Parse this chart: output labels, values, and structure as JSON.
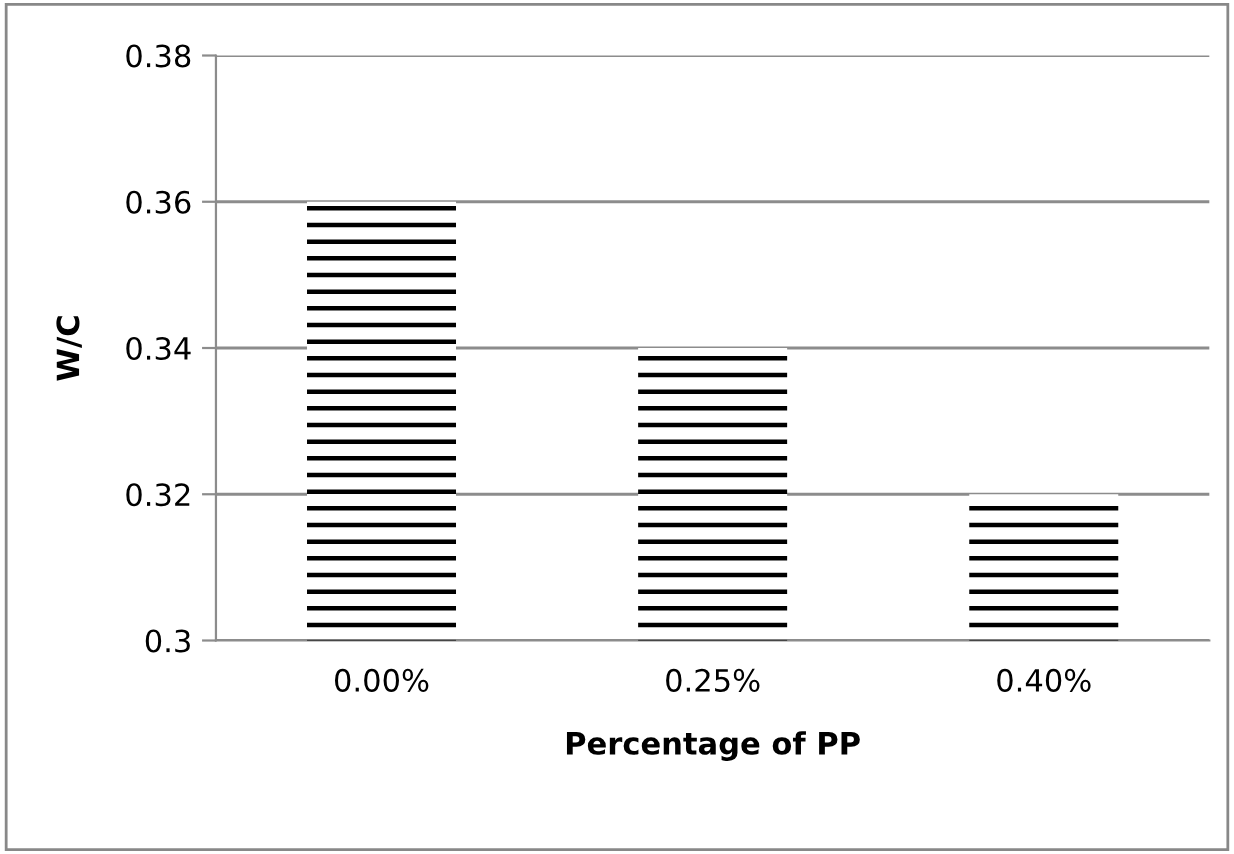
{
  "chart_data": {
    "type": "bar",
    "xlabel": "Percentage of PP",
    "ylabel": "W/C",
    "categories": [
      "0.00%",
      "0.25%",
      "0.40%"
    ],
    "values": [
      0.36,
      0.34,
      0.32
    ],
    "color": "#000000",
    "ylim": [
      0.3,
      0.38
    ],
    "yticks": [
      0.3,
      0.32,
      0.34,
      0.36,
      0.38
    ],
    "grid": "y",
    "legend": false
  }
}
